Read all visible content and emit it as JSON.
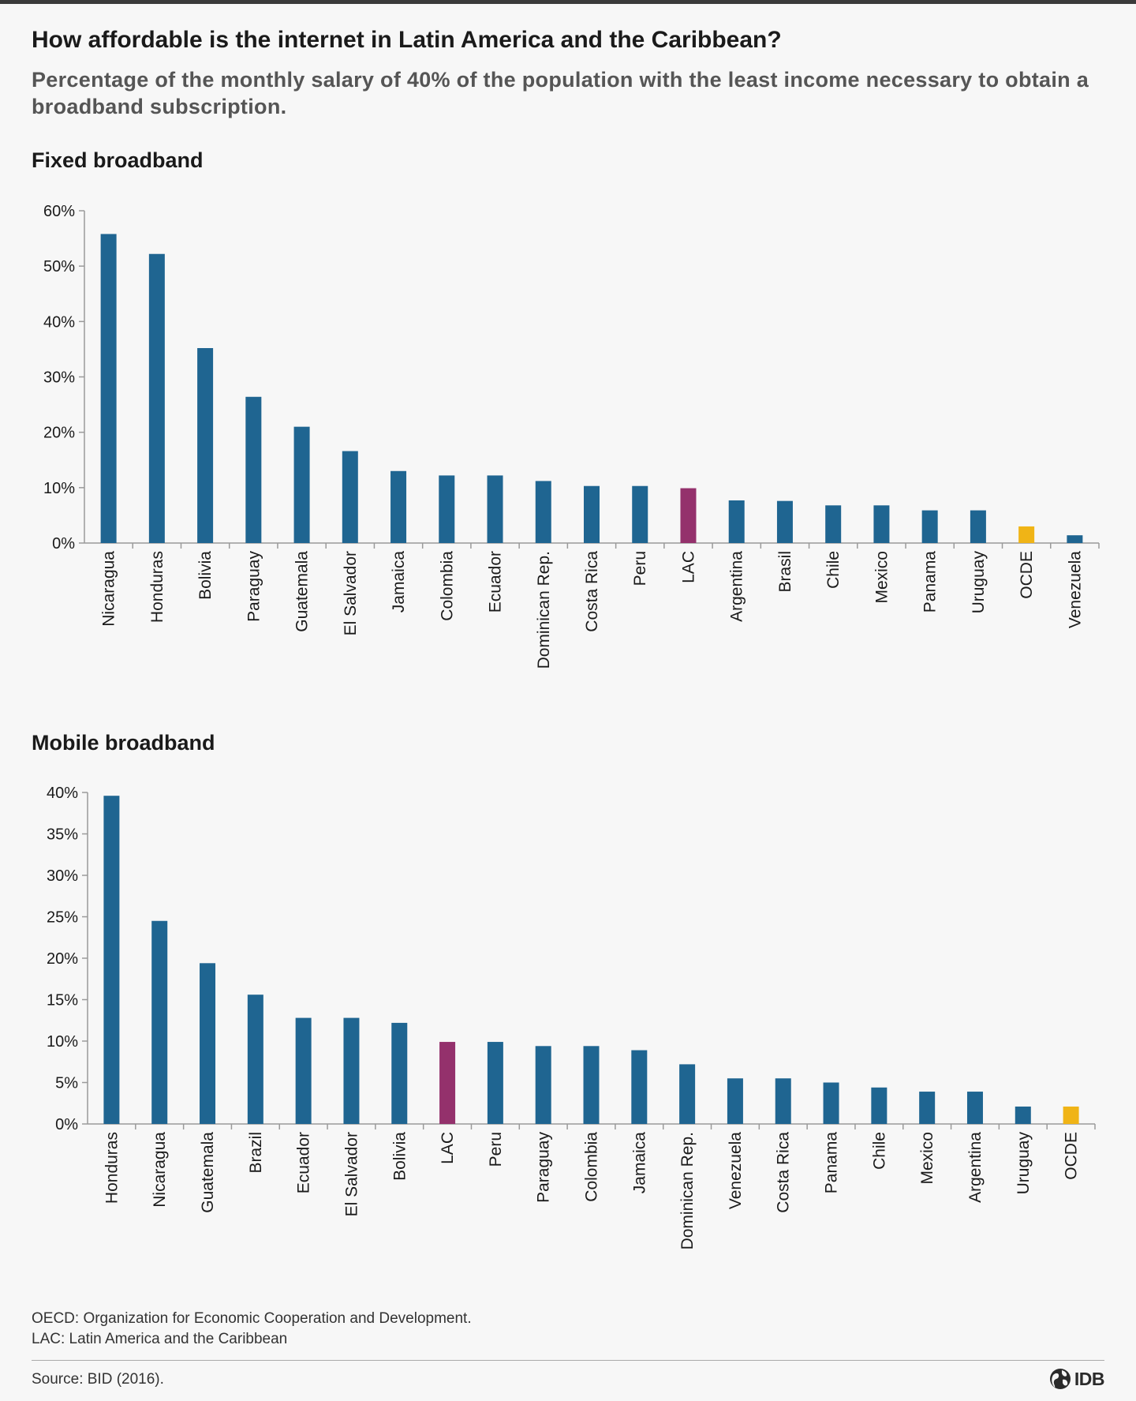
{
  "title": "How affordable is the internet in Latin America and the Caribbean?",
  "subtitle": "Percentage of the monthly salary of 40% of the population with the least income necessary to obtain a broadband subscription.",
  "colors": {
    "country": "#1f6591",
    "lac": "#94316c",
    "ocde": "#f0b416",
    "axis": "#9a9a9a",
    "text": "#1a1a1a"
  },
  "chart_data": [
    {
      "type": "bar",
      "title": "Fixed broadband",
      "xlabel": "",
      "ylabel": "",
      "ylim": [
        0,
        60
      ],
      "yticks": [
        0,
        10,
        20,
        30,
        40,
        50,
        60
      ],
      "ytick_labels": [
        "0%",
        "10%",
        "20%",
        "30%",
        "40%",
        "50%",
        "60%"
      ],
      "grid": false,
      "categories": [
        "Nicaragua",
        "Honduras",
        "Bolivia",
        "Paraguay",
        "Guatemala",
        "El Salvador",
        "Jamaica",
        "Colombia",
        "Ecuador",
        "Dominican Rep.",
        "Costa Rica",
        "Peru",
        "LAC",
        "Argentina",
        "Brasil",
        "Chile",
        "Mexico",
        "Panama",
        "Uruguay",
        "OCDE",
        "Venezuela"
      ],
      "values": [
        55.8,
        52.2,
        35.2,
        26.4,
        21.0,
        16.6,
        13.0,
        12.2,
        12.2,
        11.2,
        10.3,
        10.3,
        9.9,
        7.7,
        7.6,
        6.8,
        6.8,
        5.9,
        5.9,
        3.0,
        1.4
      ]
    },
    {
      "type": "bar",
      "title": "Mobile broadband",
      "xlabel": "",
      "ylabel": "",
      "ylim": [
        0,
        40
      ],
      "yticks": [
        0,
        5,
        10,
        15,
        20,
        25,
        30,
        35,
        40
      ],
      "ytick_labels": [
        "0%",
        "5%",
        "10%",
        "15%",
        "20%",
        "25%",
        "30%",
        "35%",
        "40%"
      ],
      "grid": false,
      "categories": [
        "Honduras",
        "Nicaragua",
        "Guatemala",
        "Brazil",
        "Ecuador",
        "El Salvador",
        "Bolivia",
        "LAC",
        "Peru",
        "Paraguay",
        "Colombia",
        "Jamaica",
        "Dominican Rep.",
        "Venezuela",
        "Costa Rica",
        "Panama",
        "Chile",
        "Mexico",
        "Argentina",
        "Uruguay",
        "OCDE"
      ],
      "values": [
        39.6,
        24.5,
        19.4,
        15.6,
        12.8,
        12.8,
        12.2,
        9.9,
        9.9,
        9.4,
        9.4,
        8.9,
        7.2,
        5.5,
        5.5,
        5.0,
        4.4,
        3.9,
        3.9,
        2.1,
        2.1
      ]
    }
  ],
  "notes": {
    "oecd": "OECD: Organization for Economic Cooperation and Development.",
    "lac": "LAC: Latin America and the Caribbean"
  },
  "source": "Source: BID (2016).",
  "logo": {
    "icon": "globe-icon",
    "text": "IDB"
  }
}
